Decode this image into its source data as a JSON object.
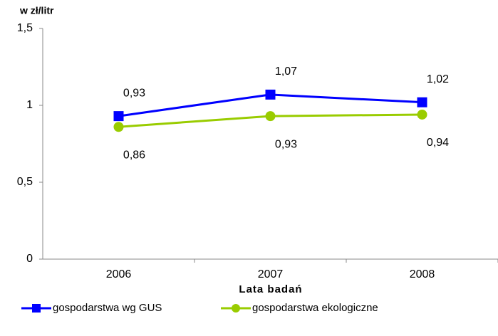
{
  "chart_data": {
    "type": "line",
    "y_label": "w zł/litr",
    "x_label": "Lata badań",
    "categories": [
      "2006",
      "2007",
      "2008"
    ],
    "series": [
      {
        "name": "gospodarstwa wg GUS",
        "color": "#0000ff",
        "marker": "square",
        "values": [
          0.93,
          1.07,
          1.02
        ],
        "value_labels": [
          "0,93",
          "1,07",
          "1,02"
        ]
      },
      {
        "name": "gospodarstwa ekologiczne",
        "color": "#99cc00",
        "marker": "circle",
        "values": [
          0.86,
          0.93,
          0.94
        ],
        "value_labels": [
          "0,86",
          "0,93",
          "0,94"
        ]
      }
    ],
    "ylim": [
      0,
      1.5
    ],
    "yticks": [
      0,
      {
        "value": 0.5,
        "label": "0,5"
      },
      1,
      {
        "value": 1.5,
        "label": "1,5"
      }
    ],
    "legend": "bottom"
  }
}
